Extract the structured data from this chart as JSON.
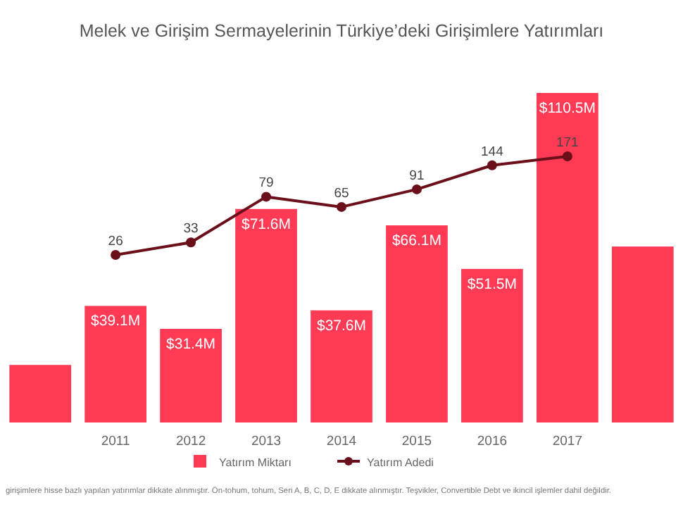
{
  "chart_data": {
    "type": "bar",
    "title": "Melek ve Girişim Sermayelerinin Türkiye’deki Girişimlere Yatırımları",
    "categories": [
      null,
      "2011",
      "2012",
      "2013",
      "2014",
      "2015",
      "2016",
      "2017",
      null
    ],
    "series": [
      {
        "name": "Yatırım Miktarı",
        "color": "#ff3a55",
        "values": [
          19.3,
          39.1,
          31.4,
          71.6,
          37.6,
          66.1,
          51.5,
          110.5,
          59
        ],
        "value_labels": [
          null,
          "$39.1M",
          "$31.4M",
          "$71.6M",
          "$37.6M",
          "$66.1M",
          "$51.5M",
          "$110.5M",
          null
        ]
      },
      {
        "name": "Yatırım Adedi",
        "type": "line",
        "axis": "y2",
        "color": "#6b0f1a",
        "marker": "circle",
        "values": [
          null,
          26,
          33,
          79,
          65,
          91,
          144,
          171,
          null
        ],
        "value_labels": [
          null,
          "26",
          "33",
          "79",
          "65",
          "91",
          "144",
          "171",
          null
        ]
      }
    ],
    "legend": "bottom",
    "log": "y2",
    "annotations": [
      "girişimlere hisse bazlı yapılan yatırımlar dikkate alınmıştır. Ön-tohum, tohum, Seri A, B, C, D, E dikkate alınmıştır. Teşvikler, Convertible Debt ve ikincil işlemler dahil değildir."
    ]
  }
}
